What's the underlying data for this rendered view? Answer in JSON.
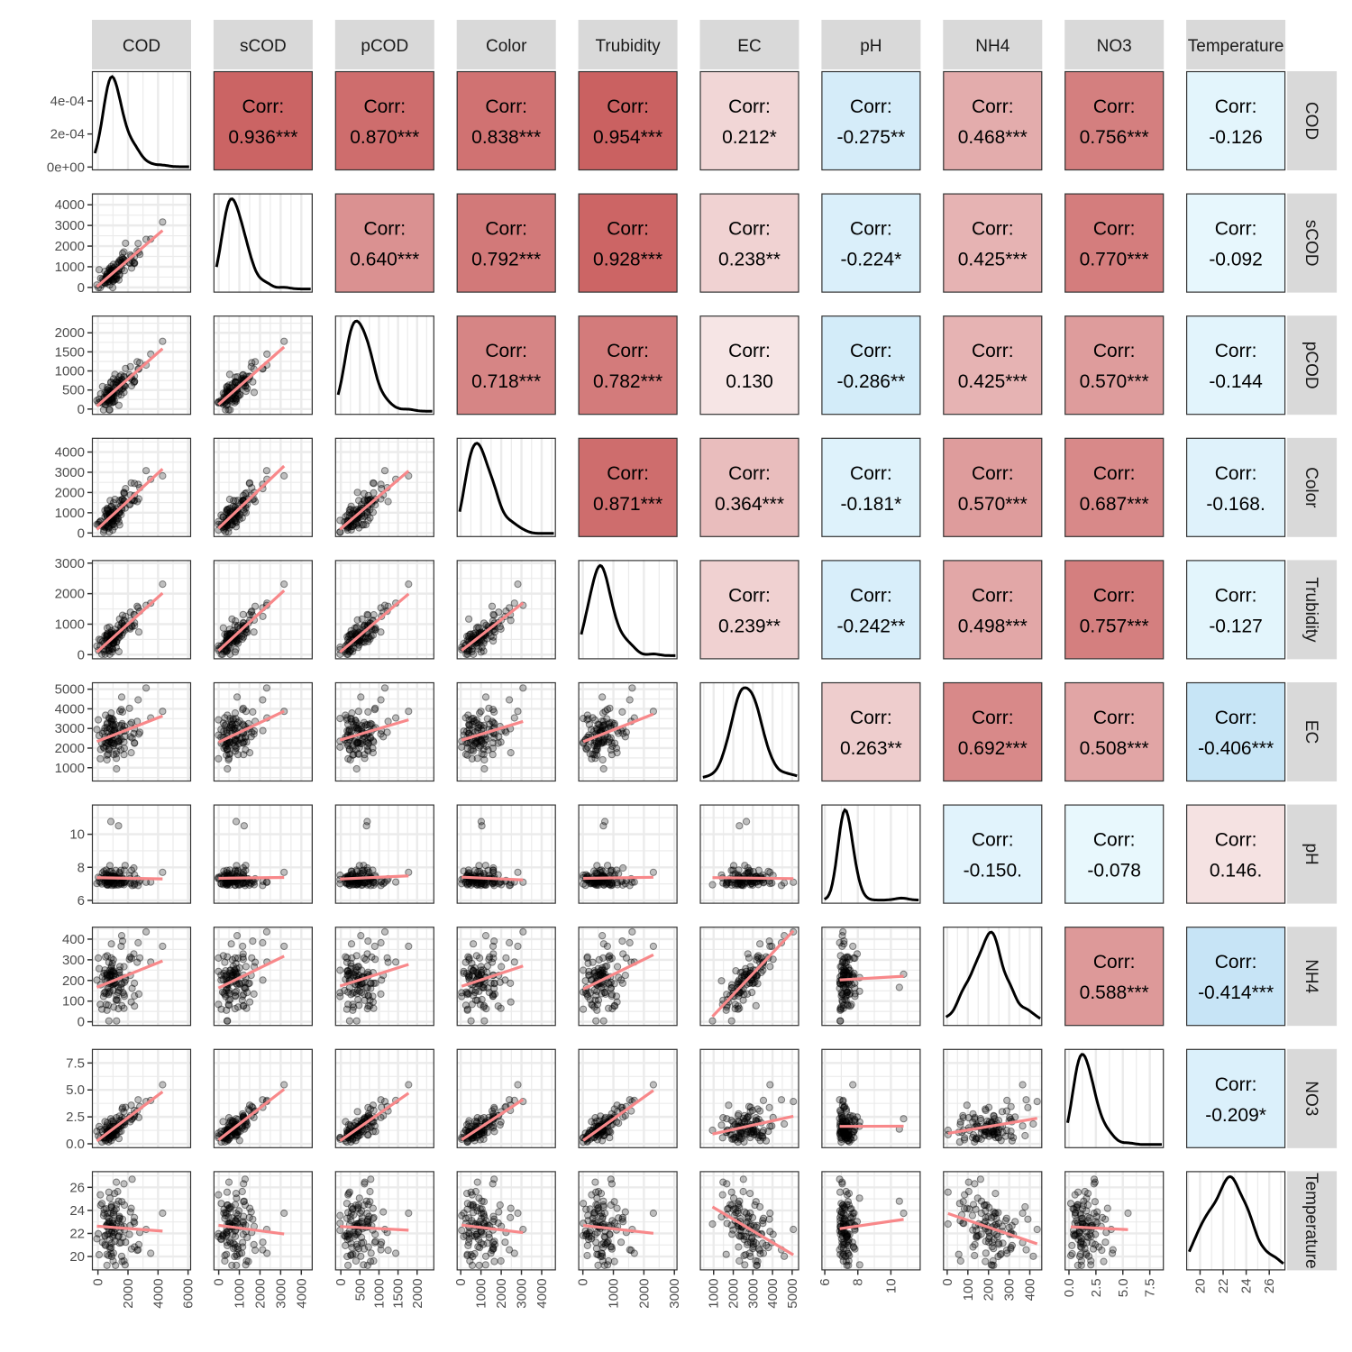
{
  "chart_data": {
    "type": "scatter-matrix",
    "variables": [
      "COD",
      "sCOD",
      "pCOD",
      "Color",
      "Trubidity",
      "EC",
      "pH",
      "NH4",
      "NO3",
      "Temperature"
    ],
    "corr_label": "Corr:",
    "correlations": [
      {
        "row": "sCOD",
        "col": "COD",
        "value": 0.936,
        "text": "0.936***"
      },
      {
        "row": "pCOD",
        "col": "COD",
        "value": 0.87,
        "text": "0.870***"
      },
      {
        "row": "Color",
        "col": "COD",
        "value": 0.838,
        "text": "0.838***"
      },
      {
        "row": "Trubidity",
        "col": "COD",
        "value": 0.954,
        "text": "0.954***"
      },
      {
        "row": "EC",
        "col": "COD",
        "value": 0.212,
        "text": "0.212*"
      },
      {
        "row": "pH",
        "col": "COD",
        "value": -0.275,
        "text": "-0.275**"
      },
      {
        "row": "NH4",
        "col": "COD",
        "value": 0.468,
        "text": "0.468***"
      },
      {
        "row": "NO3",
        "col": "COD",
        "value": 0.756,
        "text": "0.756***"
      },
      {
        "row": "Temperature",
        "col": "COD",
        "value": -0.126,
        "text": "-0.126"
      },
      {
        "row": "pCOD",
        "col": "sCOD",
        "value": 0.64,
        "text": "0.640***"
      },
      {
        "row": "Color",
        "col": "sCOD",
        "value": 0.792,
        "text": "0.792***"
      },
      {
        "row": "Trubidity",
        "col": "sCOD",
        "value": 0.928,
        "text": "0.928***"
      },
      {
        "row": "EC",
        "col": "sCOD",
        "value": 0.238,
        "text": "0.238**"
      },
      {
        "row": "pH",
        "col": "sCOD",
        "value": -0.224,
        "text": "-0.224*"
      },
      {
        "row": "NH4",
        "col": "sCOD",
        "value": 0.425,
        "text": "0.425***"
      },
      {
        "row": "NO3",
        "col": "sCOD",
        "value": 0.77,
        "text": "0.770***"
      },
      {
        "row": "Temperature",
        "col": "sCOD",
        "value": -0.092,
        "text": "-0.092"
      },
      {
        "row": "Color",
        "col": "pCOD",
        "value": 0.718,
        "text": "0.718***"
      },
      {
        "row": "Trubidity",
        "col": "pCOD",
        "value": 0.782,
        "text": "0.782***"
      },
      {
        "row": "EC",
        "col": "pCOD",
        "value": 0.13,
        "text": "0.130"
      },
      {
        "row": "pH",
        "col": "pCOD",
        "value": -0.286,
        "text": "-0.286**"
      },
      {
        "row": "NH4",
        "col": "pCOD",
        "value": 0.425,
        "text": "0.425***"
      },
      {
        "row": "NO3",
        "col": "pCOD",
        "value": 0.57,
        "text": "0.570***"
      },
      {
        "row": "Temperature",
        "col": "pCOD",
        "value": -0.144,
        "text": "-0.144"
      },
      {
        "row": "Trubidity",
        "col": "Color",
        "value": 0.871,
        "text": "0.871***"
      },
      {
        "row": "EC",
        "col": "Color",
        "value": 0.364,
        "text": "0.364***"
      },
      {
        "row": "pH",
        "col": "Color",
        "value": -0.181,
        "text": "-0.181*"
      },
      {
        "row": "NH4",
        "col": "Color",
        "value": 0.57,
        "text": "0.570***"
      },
      {
        "row": "NO3",
        "col": "Color",
        "value": 0.687,
        "text": "0.687***"
      },
      {
        "row": "Temperature",
        "col": "Color",
        "value": -0.168,
        "text": "-0.168."
      },
      {
        "row": "EC",
        "col": "Trubidity",
        "value": 0.239,
        "text": "0.239**"
      },
      {
        "row": "pH",
        "col": "Trubidity",
        "value": -0.242,
        "text": "-0.242**"
      },
      {
        "row": "NH4",
        "col": "Trubidity",
        "value": 0.498,
        "text": "0.498***"
      },
      {
        "row": "NO3",
        "col": "Trubidity",
        "value": 0.757,
        "text": "0.757***"
      },
      {
        "row": "Temperature",
        "col": "Trubidity",
        "value": -0.127,
        "text": "-0.127"
      },
      {
        "row": "pH",
        "col": "EC",
        "value": 0.263,
        "text": "0.263**"
      },
      {
        "row": "NH4",
        "col": "EC",
        "value": 0.692,
        "text": "0.692***"
      },
      {
        "row": "NO3",
        "col": "EC",
        "value": 0.508,
        "text": "0.508***"
      },
      {
        "row": "Temperature",
        "col": "EC",
        "value": -0.406,
        "text": "-0.406***"
      },
      {
        "row": "NH4",
        "col": "pH",
        "value": -0.15,
        "text": "-0.150."
      },
      {
        "row": "NO3",
        "col": "pH",
        "value": -0.078,
        "text": "-0.078"
      },
      {
        "row": "Temperature",
        "col": "pH",
        "value": 0.146,
        "text": "0.146."
      },
      {
        "row": "NO3",
        "col": "NH4",
        "value": 0.588,
        "text": "0.588***"
      },
      {
        "row": "Temperature",
        "col": "NH4",
        "value": -0.414,
        "text": "-0.414***"
      },
      {
        "row": "Temperature",
        "col": "NO3",
        "value": -0.209,
        "text": "-0.209*"
      }
    ],
    "axes": {
      "COD": {
        "range": [
          -400,
          6200
        ],
        "ticks": [
          0,
          2000,
          4000,
          6000
        ],
        "tick_labels": [
          "0",
          "2000",
          "4000",
          "6000"
        ]
      },
      "sCOD": {
        "range": [
          -250,
          4550
        ],
        "ticks": [
          0,
          1000,
          2000,
          3000,
          4000
        ],
        "tick_labels": [
          "0",
          "1000",
          "2000",
          "3000",
          "4000"
        ]
      },
      "pCOD": {
        "range": [
          -150,
          2450
        ],
        "ticks": [
          0,
          500,
          1000,
          1500,
          2000
        ],
        "tick_labels": [
          "0",
          "500",
          "1000",
          "1500",
          "2000"
        ]
      },
      "Color": {
        "range": [
          -200,
          4700
        ],
        "ticks": [
          0,
          1000,
          2000,
          3000,
          4000
        ],
        "tick_labels": [
          "0",
          "1000",
          "2000",
          "3000",
          "4000"
        ]
      },
      "Trubidity": {
        "range": [
          -150,
          3100
        ],
        "ticks": [
          0,
          1000,
          2000,
          3000
        ],
        "tick_labels": [
          "0",
          "1000",
          "2000",
          "3000"
        ]
      },
      "EC": {
        "range": [
          300,
          5350
        ],
        "ticks": [
          1000,
          2000,
          3000,
          4000,
          5000
        ],
        "tick_labels": [
          "1000",
          "2000",
          "3000",
          "4000",
          "5000"
        ]
      },
      "pH": {
        "range": [
          5.8,
          11.8
        ],
        "ticks": [
          6,
          8,
          10
        ],
        "tick_labels": [
          "6",
          "8",
          "10"
        ]
      },
      "NH4": {
        "range": [
          -20,
          460
        ],
        "ticks": [
          0,
          100,
          200,
          300,
          400
        ],
        "tick_labels": [
          "0",
          "100",
          "200",
          "300",
          "400"
        ]
      },
      "NO3": {
        "range": [
          -0.4,
          8.8
        ],
        "ticks": [
          0.0,
          2.5,
          5.0,
          7.5
        ],
        "tick_labels": [
          "0.0",
          "2.5",
          "5.0",
          "7.5"
        ]
      },
      "Temperature": {
        "range": [
          18.8,
          27.4
        ],
        "ticks": [
          20,
          22,
          24,
          26
        ],
        "tick_labels": [
          "20",
          "22",
          "24",
          "26"
        ]
      }
    },
    "cod_density_axis": {
      "range": [
        -2e-05,
        0.00058
      ],
      "ticks": [
        0,
        0.0002,
        0.0004
      ],
      "tick_labels": [
        "0e+00",
        "2e-04",
        "4e-04"
      ]
    },
    "colors": {
      "strip_bg": "#d9d9d9",
      "panel_border": "#333333",
      "grid": "#ebebeb",
      "points": "#000000",
      "fit_line": "#f8888a",
      "density_line": "#000000",
      "corr_positive_max": "#c85a5a",
      "corr_negative_max": "#c6e4f6",
      "corr_neutral": "#ffffff"
    }
  }
}
